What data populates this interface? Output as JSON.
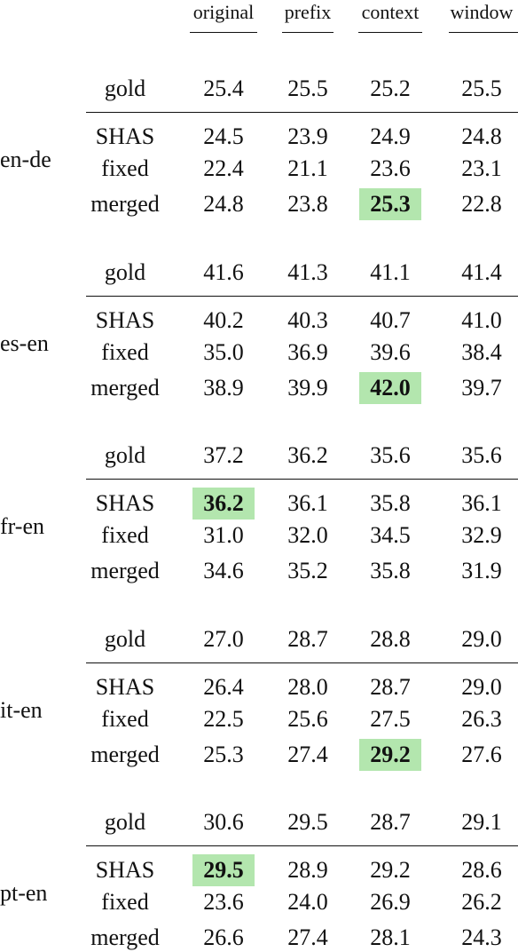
{
  "columns": [
    "original",
    "prefix",
    "context",
    "window"
  ],
  "highlight_color": "#b3e6ae",
  "groups": [
    {
      "lang": "en-de",
      "rows": [
        {
          "segmentation": "gold",
          "values": [
            "25.4",
            "25.5",
            "25.2",
            "25.5"
          ]
        },
        {
          "segmentation": "SHAS",
          "values": [
            "24.5",
            "23.9",
            "24.9",
            "24.8"
          ]
        },
        {
          "segmentation": "fixed",
          "values": [
            "22.4",
            "21.1",
            "23.6",
            "23.1"
          ]
        },
        {
          "segmentation": "merged",
          "values": [
            "24.8",
            "23.8",
            "25.3",
            "22.8"
          ]
        }
      ],
      "best": {
        "row": 3,
        "col": 2
      }
    },
    {
      "lang": "es-en",
      "rows": [
        {
          "segmentation": "gold",
          "values": [
            "41.6",
            "41.3",
            "41.1",
            "41.4"
          ]
        },
        {
          "segmentation": "SHAS",
          "values": [
            "40.2",
            "40.3",
            "40.7",
            "41.0"
          ]
        },
        {
          "segmentation": "fixed",
          "values": [
            "35.0",
            "36.9",
            "39.6",
            "38.4"
          ]
        },
        {
          "segmentation": "merged",
          "values": [
            "38.9",
            "39.9",
            "42.0",
            "39.7"
          ]
        }
      ],
      "best": {
        "row": 3,
        "col": 2
      }
    },
    {
      "lang": "fr-en",
      "rows": [
        {
          "segmentation": "gold",
          "values": [
            "37.2",
            "36.2",
            "35.6",
            "35.6"
          ]
        },
        {
          "segmentation": "SHAS",
          "values": [
            "36.2",
            "36.1",
            "35.8",
            "36.1"
          ]
        },
        {
          "segmentation": "fixed",
          "values": [
            "31.0",
            "32.0",
            "34.5",
            "32.9"
          ]
        },
        {
          "segmentation": "merged",
          "values": [
            "34.6",
            "35.2",
            "35.8",
            "31.9"
          ]
        }
      ],
      "best": {
        "row": 1,
        "col": 0
      }
    },
    {
      "lang": "it-en",
      "rows": [
        {
          "segmentation": "gold",
          "values": [
            "27.0",
            "28.7",
            "28.8",
            "29.0"
          ]
        },
        {
          "segmentation": "SHAS",
          "values": [
            "26.4",
            "28.0",
            "28.7",
            "29.0"
          ]
        },
        {
          "segmentation": "fixed",
          "values": [
            "22.5",
            "25.6",
            "27.5",
            "26.3"
          ]
        },
        {
          "segmentation": "merged",
          "values": [
            "25.3",
            "27.4",
            "29.2",
            "27.6"
          ]
        }
      ],
      "best": {
        "row": 3,
        "col": 2
      }
    },
    {
      "lang": "pt-en",
      "rows": [
        {
          "segmentation": "gold",
          "values": [
            "30.6",
            "29.5",
            "28.7",
            "29.1"
          ]
        },
        {
          "segmentation": "SHAS",
          "values": [
            "29.5",
            "28.9",
            "29.2",
            "28.6"
          ]
        },
        {
          "segmentation": "fixed",
          "values": [
            "23.6",
            "24.0",
            "26.9",
            "26.2"
          ]
        },
        {
          "segmentation": "merged",
          "values": [
            "26.6",
            "27.4",
            "28.1",
            "24.3"
          ]
        }
      ],
      "best": {
        "row": 1,
        "col": 0
      }
    }
  ]
}
